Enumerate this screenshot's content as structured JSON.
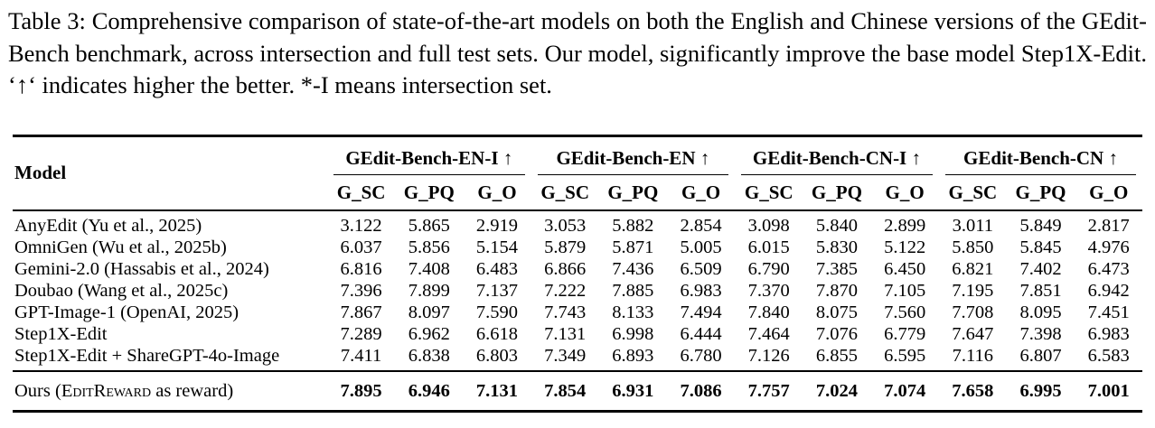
{
  "caption": {
    "text": "Table 3: Comprehensive comparison of state-of-the-art models on both the English and Chinese ver­sions of the GEdit-Bench benchmark, across intersection and full test sets. Our model, significantly improve the base model Step1X-Edit. ‘↑‘ indicates higher the better. *-I means intersection set."
  },
  "table": {
    "model_header": "Model",
    "groups": [
      {
        "label": "GEdit-Bench-EN-I ↑",
        "sub_headers": [
          "G_SC",
          "G_PQ",
          "G_O"
        ]
      },
      {
        "label": "GEdit-Bench-EN ↑",
        "sub_headers": [
          "G_SC",
          "G_PQ",
          "G_O"
        ]
      },
      {
        "label": "GEdit-Bench-CN-I ↑",
        "sub_headers": [
          "G_SC",
          "G_PQ",
          "G_O"
        ]
      },
      {
        "label": "GEdit-Bench-CN ↑",
        "sub_headers": [
          "G_SC",
          "G_PQ",
          "G_O"
        ]
      }
    ],
    "rows": [
      {
        "model": "AnyEdit (Yu et al., 2025)",
        "values": [
          "3.122",
          "5.865",
          "2.919",
          "3.053",
          "5.882",
          "2.854",
          "3.098",
          "5.840",
          "2.899",
          "3.011",
          "5.849",
          "2.817"
        ]
      },
      {
        "model": "OmniGen (Wu et al., 2025b)",
        "values": [
          "6.037",
          "5.856",
          "5.154",
          "5.879",
          "5.871",
          "5.005",
          "6.015",
          "5.830",
          "5.122",
          "5.850",
          "5.845",
          "4.976"
        ]
      },
      {
        "model": "Gemini-2.0 (Hassabis et al., 2024)",
        "values": [
          "6.816",
          "7.408",
          "6.483",
          "6.866",
          "7.436",
          "6.509",
          "6.790",
          "7.385",
          "6.450",
          "6.821",
          "7.402",
          "6.473"
        ]
      },
      {
        "model": "Doubao (Wang et al., 2025c)",
        "values": [
          "7.396",
          "7.899",
          "7.137",
          "7.222",
          "7.885",
          "6.983",
          "7.370",
          "7.870",
          "7.105",
          "7.195",
          "7.851",
          "6.942"
        ]
      },
      {
        "model": "GPT-Image-1 (OpenAI, 2025)",
        "values": [
          "7.867",
          "8.097",
          "7.590",
          "7.743",
          "8.133",
          "7.494",
          "7.840",
          "8.075",
          "7.560",
          "7.708",
          "8.095",
          "7.451"
        ]
      },
      {
        "model": "Step1X-Edit",
        "values": [
          "7.289",
          "6.962",
          "6.618",
          "7.131",
          "6.998",
          "6.444",
          "7.464",
          "7.076",
          "6.779",
          "7.647",
          "7.398",
          "6.983"
        ]
      },
      {
        "model": "Step1X-Edit + ShareGPT-4o-Image",
        "values": [
          "7.411",
          "6.838",
          "6.803",
          "7.349",
          "6.893",
          "6.780",
          "7.126",
          "6.855",
          "6.595",
          "7.116",
          "6.807",
          "6.583"
        ]
      }
    ],
    "ours_row": {
      "model_prefix": "Ours (",
      "model_smallcaps": "EditReward",
      "model_suffix": " as reward)",
      "values": [
        "7.895",
        "6.946",
        "7.131",
        "7.854",
        "6.931",
        "7.086",
        "7.757",
        "7.024",
        "7.074",
        "7.658",
        "6.995",
        "7.001"
      ]
    }
  },
  "colors": {
    "text": "#000000",
    "background": "#ffffff",
    "rule": "#000000"
  }
}
